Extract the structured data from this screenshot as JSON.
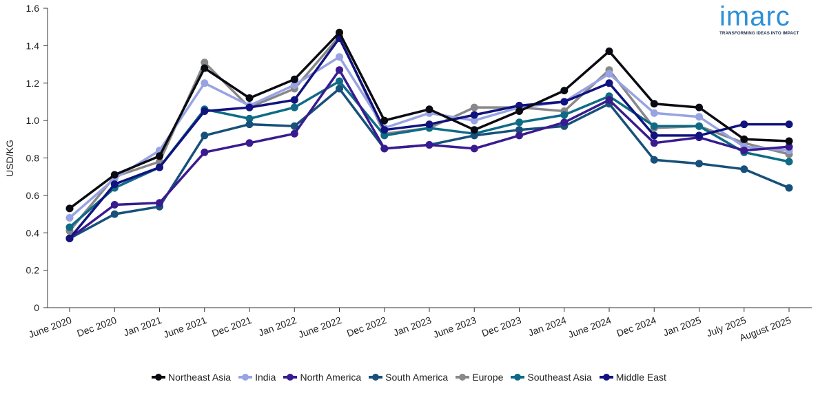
{
  "logo": {
    "word": "imarc",
    "tagline": "TRANSFORMING IDEAS INTO IMPACT"
  },
  "chart_data": {
    "type": "line",
    "title": "",
    "xlabel": "",
    "ylabel": "USD/KG",
    "ylim": [
      0,
      1.6
    ],
    "yticks": [
      0,
      0.2,
      0.4,
      0.6,
      0.8,
      1.0,
      1.2,
      1.4,
      1.6
    ],
    "ytick_labels": [
      "0",
      "0.2",
      "0.4",
      "0.6",
      "0.8",
      "1.0",
      "1.2",
      "1.4",
      "1.6"
    ],
    "grid": false,
    "legend_position": "bottom",
    "categories": [
      "June 2020",
      "Dec 2020",
      "Jan 2021",
      "June 2021",
      "Dec 2021",
      "Jan 2022",
      "June 2022",
      "Dec 2022",
      "Jan 2023",
      "June 2023",
      "Dec 2023",
      "Jan 2024",
      "June 2024",
      "Dec 2024",
      "Jan 2025",
      "July 2025",
      "August 2025"
    ],
    "series": [
      {
        "name": "Europe",
        "color": "#888888",
        "values": [
          0.41,
          0.7,
          0.78,
          1.31,
          1.07,
          1.17,
          1.45,
          0.93,
          0.96,
          1.07,
          1.07,
          1.05,
          1.27,
          0.96,
          0.97,
          0.88,
          0.82
        ]
      },
      {
        "name": "India",
        "color": "#97a3e3",
        "values": [
          0.48,
          0.69,
          0.84,
          1.2,
          1.08,
          1.19,
          1.34,
          0.96,
          1.04,
          1.0,
          1.07,
          1.1,
          1.25,
          1.04,
          1.02,
          0.86,
          0.84
        ]
      },
      {
        "name": "Southeast Asia",
        "color": "#0e6b86",
        "values": [
          0.43,
          0.64,
          0.75,
          1.06,
          1.01,
          1.07,
          1.21,
          0.92,
          0.96,
          0.93,
          0.99,
          1.03,
          1.13,
          0.97,
          0.97,
          0.83,
          0.78
        ]
      },
      {
        "name": "South America",
        "color": "#17507a",
        "values": [
          0.37,
          0.5,
          0.54,
          0.92,
          0.98,
          0.97,
          1.17,
          0.85,
          0.87,
          0.92,
          0.95,
          0.97,
          1.09,
          0.79,
          0.77,
          0.74,
          0.64
        ]
      },
      {
        "name": "North America",
        "color": "#3a1b8f",
        "values": [
          0.37,
          0.55,
          0.56,
          0.83,
          0.88,
          0.93,
          1.27,
          0.85,
          0.87,
          0.85,
          0.92,
          0.99,
          1.11,
          0.88,
          0.91,
          0.84,
          0.86
        ]
      },
      {
        "name": "Middle East",
        "color": "#11137e",
        "values": [
          0.37,
          0.66,
          0.75,
          1.05,
          1.07,
          1.11,
          1.44,
          0.95,
          0.98,
          1.03,
          1.08,
          1.1,
          1.2,
          0.92,
          0.92,
          0.98,
          0.98
        ]
      },
      {
        "name": "Northeast Asia",
        "color": "#0a0a12",
        "values": [
          0.53,
          0.71,
          0.81,
          1.28,
          1.12,
          1.22,
          1.47,
          1.0,
          1.06,
          0.95,
          1.05,
          1.16,
          1.37,
          1.09,
          1.07,
          0.9,
          0.89
        ]
      }
    ],
    "legend_order": [
      "Northeast Asia",
      "India",
      "North America",
      "South America",
      "Europe",
      "Southeast Asia",
      "Middle East"
    ]
  }
}
